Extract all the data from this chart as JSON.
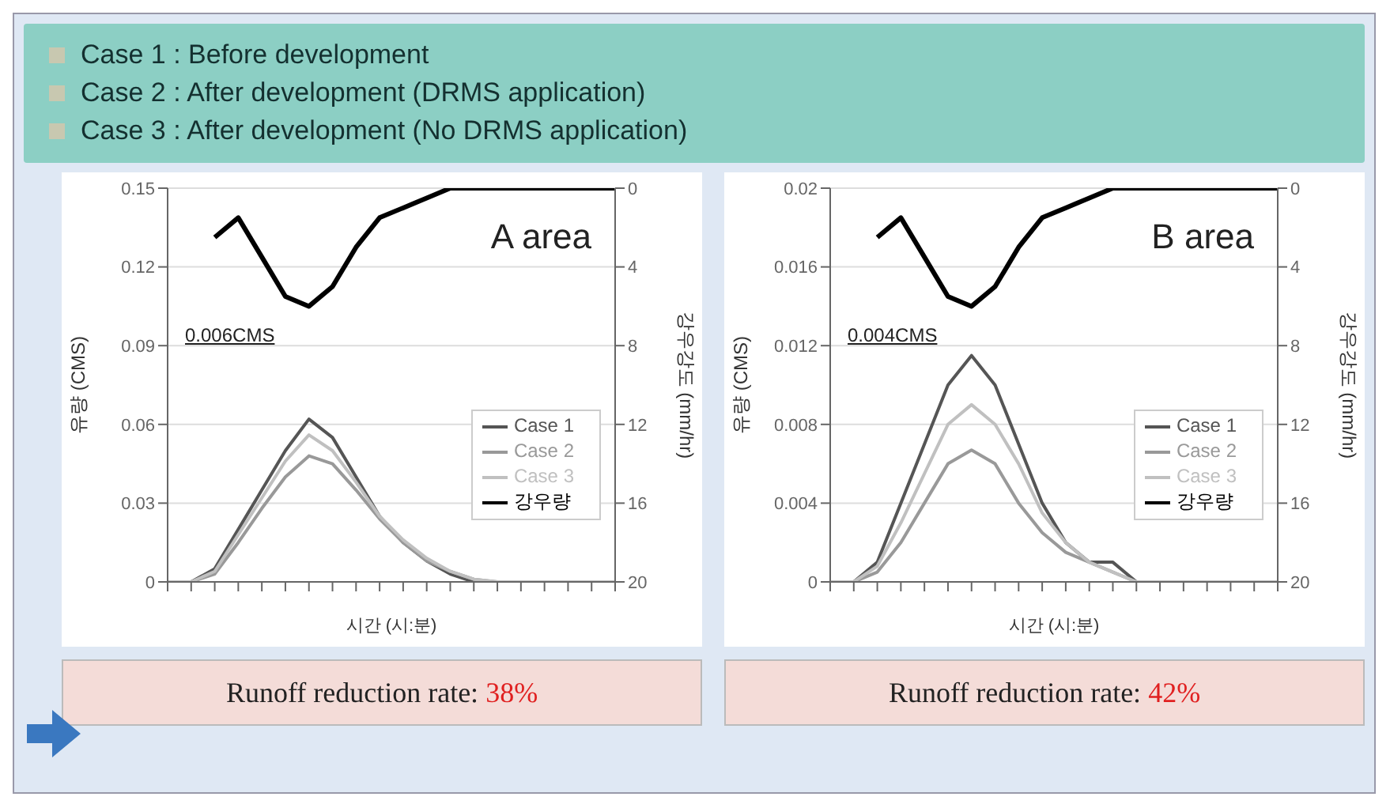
{
  "chart_data": [
    {
      "type": "other",
      "annotations": [
        "Case 1 : Before development",
        "Case 2 : After development (DRMS application)",
        "Case 3 : After development (No DRMS application)"
      ]
    },
    {
      "type": "line",
      "ylabel": "유량 (CMS)",
      "y2label": "강우강도 (mm/hr)",
      "xlabel": "시간 (시:분)",
      "annotations": [
        "A area",
        "0.006CMS",
        "Runoff reduction rate: 38%"
      ],
      "categories": [
        null,
        null,
        null,
        null,
        null,
        null,
        null,
        null,
        null,
        null,
        null,
        null,
        null,
        null,
        null,
        null,
        null,
        null,
        null,
        null
      ],
      "series": [
        {
          "name": "Case 1",
          "color": "#555555",
          "values": [
            0,
            0,
            0.005,
            0.02,
            0.035,
            0.05,
            0.062,
            0.055,
            0.04,
            0.025,
            0.015,
            0.008,
            0.003,
            0,
            0,
            0,
            0,
            0,
            0,
            0
          ]
        },
        {
          "name": "Case 2",
          "color": "#999999",
          "values": [
            0,
            0,
            0.003,
            0.015,
            0.028,
            0.04,
            0.048,
            0.045,
            0.035,
            0.024,
            0.015,
            0.008,
            0.004,
            0.001,
            0,
            0,
            0,
            0,
            0,
            0
          ]
        },
        {
          "name": "Case 3",
          "color": "#c0c0c0",
          "values": [
            0,
            0,
            0.004,
            0.018,
            0.032,
            0.046,
            0.056,
            0.05,
            0.038,
            0.025,
            0.016,
            0.009,
            0.004,
            0.001,
            0,
            0,
            0,
            0,
            0,
            0
          ]
        },
        {
          "name": "강우량",
          "color": "#000000",
          "axis": "y2",
          "values": [
            null,
            null,
            2.5,
            1.5,
            3.5,
            5.5,
            6,
            5,
            3,
            1.5,
            1,
            0.5,
            0,
            0,
            0,
            0,
            0,
            0,
            0,
            0
          ]
        }
      ],
      "ylim": [
        0,
        0.15
      ],
      "yticks": [
        0,
        0.03,
        0.06,
        0.09,
        0.12,
        0.15
      ],
      "y2lim": [
        20,
        0
      ],
      "y2ticks": [
        0,
        4,
        8,
        12,
        16,
        20
      ],
      "grid": "y",
      "legend": "right"
    },
    {
      "type": "line",
      "ylabel": "유량 (CMS)",
      "y2label": "강우강도 (mm/hr)",
      "xlabel": "시간 (시:분)",
      "annotations": [
        "B area",
        "0.004CMS",
        "Runoff reduction rate: 42%"
      ],
      "categories": [
        null,
        null,
        null,
        null,
        null,
        null,
        null,
        null,
        null,
        null,
        null,
        null,
        null,
        null,
        null,
        null,
        null,
        null,
        null,
        null
      ],
      "series": [
        {
          "name": "Case 1",
          "color": "#555555",
          "values": [
            0,
            0,
            0.001,
            0.004,
            0.007,
            0.01,
            0.0115,
            0.01,
            0.007,
            0.004,
            0.002,
            0.001,
            0.001,
            0,
            0,
            0,
            0,
            0,
            0,
            0
          ]
        },
        {
          "name": "Case 2",
          "color": "#999999",
          "values": [
            0,
            0,
            0.0005,
            0.002,
            0.004,
            0.006,
            0.0067,
            0.006,
            0.004,
            0.0025,
            0.0015,
            0.001,
            0.0005,
            0,
            0,
            0,
            0,
            0,
            0,
            0
          ]
        },
        {
          "name": "Case 3",
          "color": "#c0c0c0",
          "values": [
            0,
            0,
            0.0008,
            0.003,
            0.0055,
            0.008,
            0.009,
            0.008,
            0.006,
            0.0035,
            0.002,
            0.001,
            0.0005,
            0,
            0,
            0,
            0,
            0,
            0,
            0
          ]
        },
        {
          "name": "강우량",
          "color": "#000000",
          "axis": "y2",
          "values": [
            null,
            null,
            2.5,
            1.5,
            3.5,
            5.5,
            6,
            5,
            3,
            1.5,
            1,
            0.5,
            0,
            0,
            0,
            0,
            0,
            0,
            0,
            0
          ]
        }
      ],
      "ylim": [
        0,
        0.02
      ],
      "yticks": [
        0,
        0.004,
        0.008,
        0.012,
        0.016,
        0.02
      ],
      "y2lim": [
        20,
        0
      ],
      "y2ticks": [
        0,
        4,
        8,
        12,
        16,
        20
      ],
      "grid": "y",
      "legend": "right"
    }
  ]
}
